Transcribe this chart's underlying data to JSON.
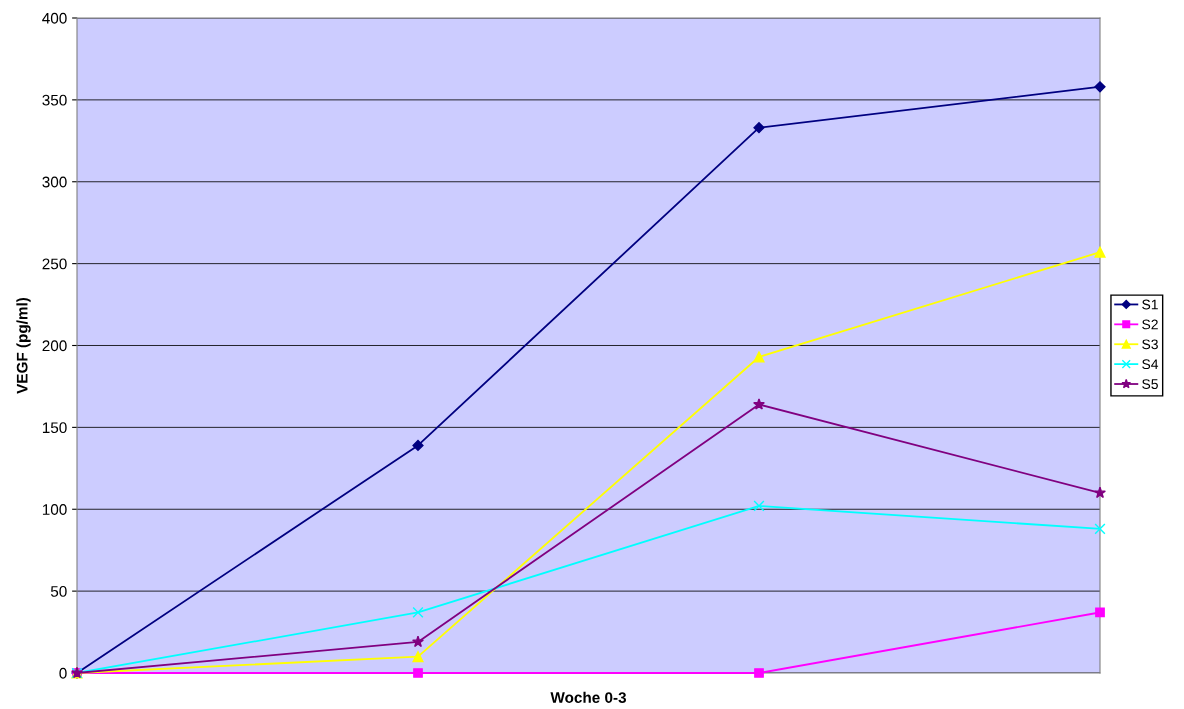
{
  "chart_data": {
    "type": "line",
    "xlabel": "Woche 0-3",
    "ylabel": "VEGF (pg/ml)",
    "categories": [
      null,
      null,
      null,
      null
    ],
    "ylim": [
      0,
      400
    ],
    "yticks": [
      0,
      50,
      100,
      150,
      200,
      250,
      300,
      350,
      400
    ],
    "grid": "y",
    "legend": "right",
    "series": [
      {
        "name": "S1",
        "color": "#000080",
        "marker": "diamond",
        "values": [
          0,
          139,
          333,
          358
        ]
      },
      {
        "name": "S2",
        "color": "#ff00ff",
        "marker": "square",
        "values": [
          0,
          0,
          0,
          37
        ]
      },
      {
        "name": "S3",
        "color": "#ffff00",
        "marker": "triangle",
        "values": [
          0,
          10,
          193,
          257
        ]
      },
      {
        "name": "S4",
        "color": "#00ffff",
        "marker": "cross",
        "values": [
          0,
          37,
          102,
          88
        ]
      },
      {
        "name": "S5",
        "color": "#800080",
        "marker": "star",
        "values": [
          0,
          19,
          164,
          110
        ]
      }
    ]
  }
}
